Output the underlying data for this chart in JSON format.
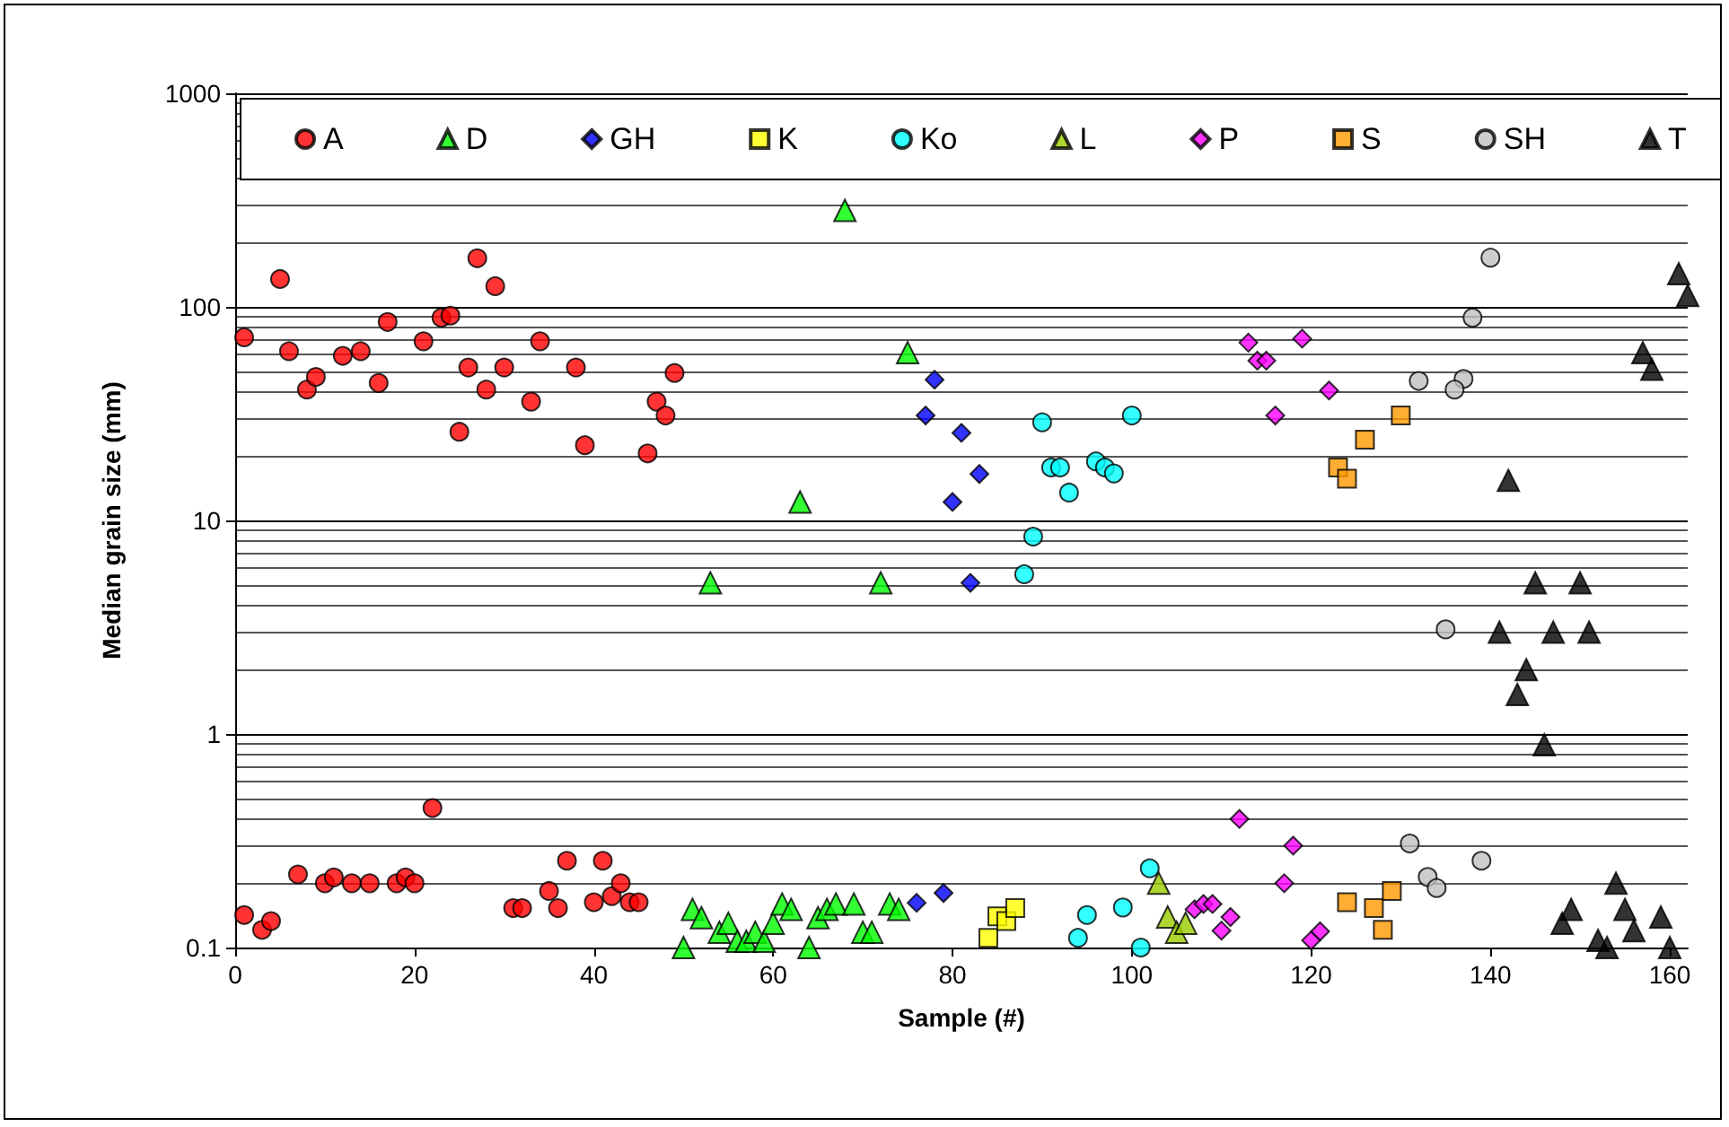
{
  "chart_data": {
    "type": "scatter",
    "xlabel": "Sample (#)",
    "ylabel": "Median grain size (mm)",
    "log": "y",
    "grid": "y",
    "legend": "top",
    "xlim": [
      0,
      162
    ],
    "xticks": [
      0,
      20,
      40,
      60,
      80,
      100,
      120,
      140,
      160
    ],
    "ylim": [
      0.1,
      1000
    ],
    "yticks": [
      0.1,
      1,
      10,
      100,
      1000
    ],
    "series": [
      {
        "name": "A",
        "color": "#ff0000",
        "marker": "circle",
        "x": [
          1,
          5,
          6,
          8,
          9,
          12,
          14,
          16,
          17,
          21,
          23,
          24,
          25,
          26,
          27,
          28,
          29,
          30,
          33,
          34,
          38,
          39,
          46,
          47,
          48,
          49,
          1,
          3,
          4,
          7,
          10,
          11,
          13,
          15,
          18,
          19,
          20,
          22,
          31,
          32,
          35,
          36,
          37,
          40,
          41,
          42,
          43,
          44,
          45
        ],
        "values": [
          72,
          135,
          62,
          41,
          47,
          59,
          62,
          44,
          85,
          69,
          89,
          91,
          26,
          52,
          169,
          41,
          125,
          52,
          36,
          69,
          52,
          22.5,
          20.6,
          36,
          31,
          49,
          0.142,
          0.121,
          0.133,
          0.22,
          0.2,
          0.213,
          0.2,
          0.2,
          0.2,
          0.213,
          0.2,
          0.45,
          0.153,
          0.153,
          0.184,
          0.153,
          0.255,
          0.163,
          0.255,
          0.174,
          0.2,
          0.163,
          0.163
        ]
      },
      {
        "name": "D",
        "color": "#00ff00",
        "marker": "triangle",
        "x": [
          68,
          75,
          63,
          53,
          72,
          50,
          51,
          52,
          54,
          55,
          56,
          57,
          58,
          59,
          60,
          61,
          62,
          64,
          65,
          66,
          67,
          69,
          70,
          71,
          73,
          74
        ],
        "values": [
          283,
          61,
          12.2,
          5.1,
          5.1,
          0.1,
          0.151,
          0.138,
          0.118,
          0.13,
          0.107,
          0.107,
          0.118,
          0.107,
          0.13,
          0.16,
          0.151,
          0.1,
          0.138,
          0.151,
          0.16,
          0.16,
          0.118,
          0.118,
          0.16,
          0.151
        ]
      },
      {
        "name": "GH",
        "color": "#0000ff",
        "marker": "diamond",
        "x": [
          78,
          77,
          81,
          80,
          83,
          82,
          79,
          76
        ],
        "values": [
          45.6,
          31,
          25.7,
          12.2,
          16.5,
          5.1,
          0.18,
          0.162
        ]
      },
      {
        "name": "K",
        "color": "#ffff00",
        "marker": "square",
        "x": [
          84,
          85,
          86,
          87
        ],
        "values": [
          0.111,
          0.14,
          0.133,
          0.153
        ]
      },
      {
        "name": "Ko",
        "color": "#00ffff",
        "marker": "circle",
        "x": [
          90,
          100,
          91,
          92,
          93,
          96,
          97,
          98,
          89,
          88,
          102,
          99,
          95,
          94,
          101
        ],
        "values": [
          28.8,
          31,
          17.7,
          17.7,
          13.5,
          18.9,
          17.7,
          16.6,
          8.4,
          5.6,
          0.235,
          0.154,
          0.142,
          0.111,
          0.1
        ]
      },
      {
        "name": "L",
        "color": "#99cc00",
        "marker": "triangle",
        "x": [
          103,
          104,
          105,
          106
        ],
        "values": [
          0.2,
          0.139,
          0.118,
          0.13
        ]
      },
      {
        "name": "P",
        "color": "#ff00ff",
        "marker": "diamond",
        "x": [
          113,
          114,
          115,
          119,
          122,
          116,
          112,
          118,
          117,
          107,
          108,
          109,
          111,
          110,
          120,
          121
        ],
        "values": [
          68,
          56,
          56,
          71,
          40.6,
          31,
          0.4,
          0.3,
          0.2,
          0.151,
          0.16,
          0.16,
          0.139,
          0.12,
          0.108,
          0.119
        ]
      },
      {
        "name": "S",
        "color": "#ff9900",
        "marker": "square",
        "x": [
          130,
          123,
          124,
          126,
          124,
          127,
          128,
          129
        ],
        "values": [
          31,
          17.7,
          15.7,
          23.9,
          0.163,
          0.153,
          0.121,
          0.184
        ]
      },
      {
        "name": "SH",
        "color": "#c0c0c0",
        "marker": "circle",
        "x": [
          140,
          138,
          137,
          136,
          132,
          135,
          131,
          139,
          133,
          134
        ],
        "values": [
          170,
          89,
          46,
          41,
          45,
          3.09,
          0.307,
          0.255,
          0.214,
          0.19
        ]
      },
      {
        "name": "T",
        "color": "#000000",
        "marker": "triangle",
        "x": [
          161,
          162,
          157,
          158,
          142,
          145,
          150,
          141,
          147,
          151,
          144,
          143,
          146,
          154,
          149,
          148,
          155,
          159,
          156,
          152,
          153,
          160
        ],
        "values": [
          143,
          113,
          61,
          51,
          15.4,
          5.1,
          5.1,
          3.0,
          3.0,
          3.0,
          2.0,
          1.53,
          0.89,
          0.2,
          0.151,
          0.13,
          0.151,
          0.139,
          0.12,
          0.108,
          0.1,
          0.1
        ]
      }
    ]
  }
}
